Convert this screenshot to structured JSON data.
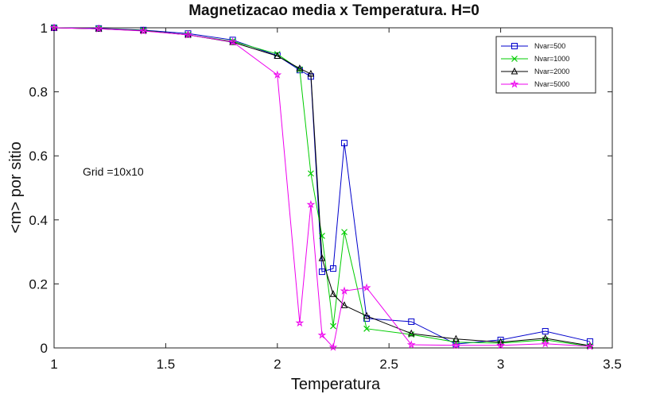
{
  "chart_data": {
    "type": "line",
    "title": "Magnetizacao media x Temperatura. H=0",
    "xlabel": "Temperatura",
    "ylabel": "<m> por sitio",
    "xlim": [
      1,
      3.5
    ],
    "ylim": [
      0,
      1
    ],
    "xticks": [
      "1",
      "1.5",
      "2",
      "2.5",
      "3",
      "3.5"
    ],
    "yticks": [
      "0",
      "0.2",
      "0.4",
      "0.6",
      "0.8",
      "1"
    ],
    "grid": false,
    "legend_position": "top-right",
    "annotation": "Grid =10x10",
    "series": [
      {
        "name": "Nvar=500",
        "color": "#0000cc",
        "marker": "square",
        "x": [
          1,
          1.2,
          1.4,
          1.6,
          1.8,
          2.0,
          2.1,
          2.15,
          2.2,
          2.25,
          2.3,
          2.4,
          2.6,
          2.8,
          3.0,
          3.2,
          3.4
        ],
        "values": [
          1.0,
          0.998,
          0.993,
          0.982,
          0.962,
          0.913,
          0.868,
          0.848,
          0.238,
          0.248,
          0.64,
          0.092,
          0.082,
          0.012,
          0.025,
          0.052,
          0.02
        ]
      },
      {
        "name": "Nvar=1000",
        "color": "#00cc00",
        "marker": "x",
        "x": [
          1,
          1.2,
          1.4,
          1.6,
          1.8,
          2.0,
          2.1,
          2.15,
          2.2,
          2.25,
          2.3,
          2.4,
          2.6,
          2.8,
          3.0,
          3.2,
          3.4
        ],
        "values": [
          1.0,
          0.997,
          0.992,
          0.978,
          0.958,
          0.918,
          0.87,
          0.545,
          0.35,
          0.068,
          0.362,
          0.06,
          0.042,
          0.018,
          0.015,
          0.025,
          0.005
        ]
      },
      {
        "name": "Nvar=2000",
        "color": "#000000",
        "marker": "triangle",
        "x": [
          1,
          1.2,
          1.4,
          1.6,
          1.8,
          2.0,
          2.1,
          2.15,
          2.2,
          2.25,
          2.3,
          2.4,
          2.6,
          2.8,
          3.0,
          3.2,
          3.4
        ],
        "values": [
          1.0,
          0.997,
          0.991,
          0.978,
          0.955,
          0.912,
          0.873,
          0.856,
          0.28,
          0.168,
          0.133,
          0.1,
          0.045,
          0.028,
          0.018,
          0.03,
          0.007
        ]
      },
      {
        "name": "Nvar=5000",
        "color": "#ee00ee",
        "marker": "star",
        "x": [
          1,
          1.2,
          1.4,
          1.6,
          1.8,
          2.0,
          2.1,
          2.15,
          2.2,
          2.25,
          2.3,
          2.4,
          2.6,
          2.8,
          3.0,
          3.2,
          3.4
        ],
        "values": [
          1.0,
          0.997,
          0.99,
          0.978,
          0.956,
          0.853,
          0.078,
          0.448,
          0.04,
          0.002,
          0.178,
          0.188,
          0.01,
          0.008,
          0.008,
          0.013,
          0.005
        ]
      }
    ]
  }
}
